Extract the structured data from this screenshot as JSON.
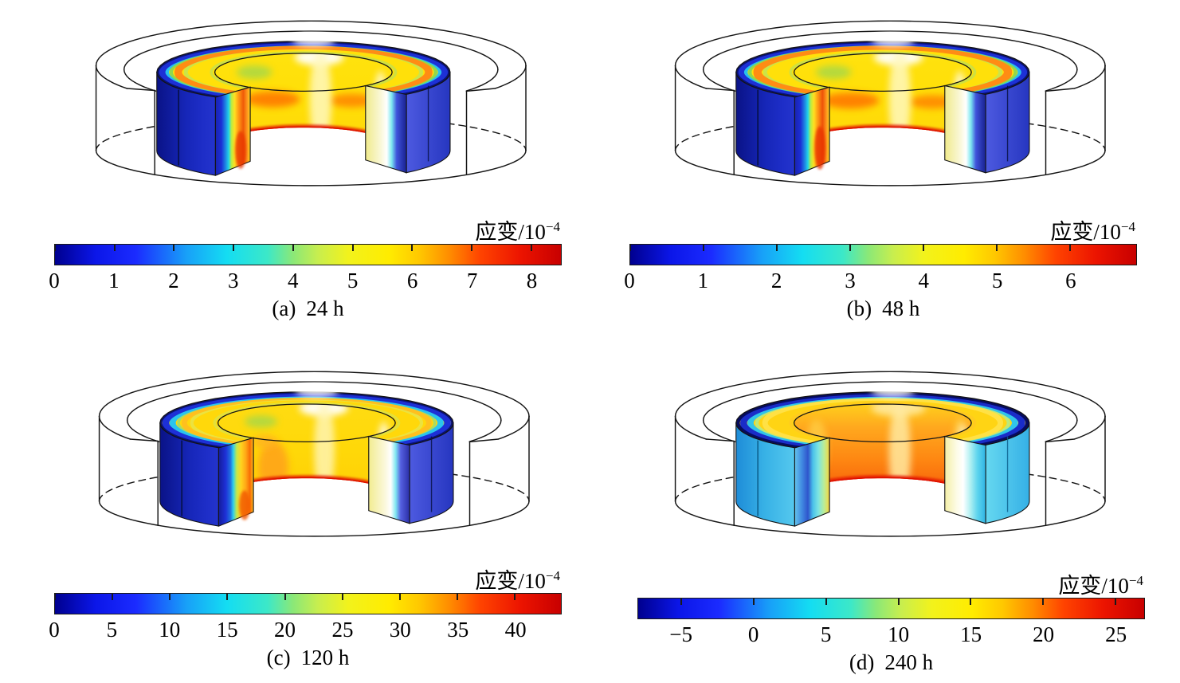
{
  "page": {
    "background": "#ffffff",
    "language": "zh-CN"
  },
  "colormap": {
    "name": "jet",
    "stops": [
      [
        0,
        "#00008f"
      ],
      [
        0.08,
        "#0b16e8"
      ],
      [
        0.16,
        "#1b2bff"
      ],
      [
        0.26,
        "#18a0f8"
      ],
      [
        0.34,
        "#14ddf2"
      ],
      [
        0.42,
        "#3ce8c8"
      ],
      [
        0.47,
        "#8ae878"
      ],
      [
        0.52,
        "#c8ee4e"
      ],
      [
        0.58,
        "#f2f21c"
      ],
      [
        0.66,
        "#ffec00"
      ],
      [
        0.72,
        "#ffc800"
      ],
      [
        0.78,
        "#ff8c00"
      ],
      [
        0.84,
        "#ff4400"
      ],
      [
        0.92,
        "#ec1400"
      ],
      [
        1,
        "#c80000"
      ]
    ]
  },
  "chart_data": [
    {
      "id": "a",
      "type": "heatmap",
      "geometry": "3D cut-away hollow cylinder, strain field on cut surfaces",
      "caption": {
        "index": "(a)",
        "time": "24 h"
      },
      "colorbar": {
        "label_prefix": "应变/10",
        "label_exponent": "−4",
        "min": 0,
        "max": 8.5,
        "ticks": [
          0,
          1,
          2,
          3,
          4,
          5,
          6,
          7,
          8
        ]
      },
      "figure": {
        "wall": [
          [
            0,
            "#ffe20e"
          ],
          [
            0.55,
            "#ffdf06"
          ],
          [
            0.85,
            "#ffd90a"
          ],
          [
            1,
            "#ffd400"
          ]
        ],
        "smudges": [
          [
            262,
            140,
            40,
            12,
            "#ff7a00",
            0.92
          ],
          [
            378,
            142,
            34,
            10,
            "#ff8200",
            0.85
          ],
          [
            235,
            100,
            26,
            10,
            "#a2d84c",
            0.8
          ],
          [
            330,
            78,
            36,
            12,
            "#ffffff",
            0.95
          ],
          [
            332,
            140,
            16,
            75,
            "#fff8c0",
            0.85
          ],
          [
            420,
            160,
            10,
            62,
            "#ffffff",
            0.75
          ]
        ],
        "rim": "#df1000",
        "ring_base": "#ffe00a",
        "ring_bands": [
          [
            0.06,
            "#c0e052",
            4,
            0.75
          ],
          [
            0.5,
            "#c8e44e",
            6,
            0.9
          ],
          [
            0.63,
            "#ff8c14",
            11,
            1
          ],
          [
            0.75,
            "#90d84c",
            5,
            1
          ],
          [
            0.83,
            "#28c0ee",
            7,
            1
          ],
          [
            0.91,
            "#1d30d6",
            10,
            1
          ],
          [
            0.99,
            "#0a1173",
            5,
            1
          ]
        ],
        "flank_left": [
          [
            0,
            "#0a1387"
          ],
          [
            0.5,
            "#1626b8"
          ],
          [
            0.8,
            "#1e2ec8"
          ],
          [
            1,
            "#2434cc"
          ]
        ],
        "flank_right": [
          [
            0,
            "#4d5ae0"
          ],
          [
            1,
            "#2636c0"
          ]
        ],
        "left_face": [
          [
            0,
            "#1a22b0"
          ],
          [
            0.17,
            "#1b2fd6"
          ],
          [
            0.3,
            "#1e8ee4"
          ],
          [
            0.38,
            "#22d4e8"
          ],
          [
            0.46,
            "#b8ec44"
          ],
          [
            0.55,
            "#ffe020"
          ],
          [
            0.66,
            "#ff9c14"
          ],
          [
            0.8,
            "#f05a08"
          ],
          [
            0.92,
            "#ff9c1e"
          ],
          [
            1,
            "#ffd41e"
          ]
        ],
        "right_face": [
          [
            0,
            "#f0ea8a"
          ],
          [
            0.38,
            "#faf8da"
          ],
          [
            0.52,
            "#ffffff"
          ],
          [
            0.64,
            "#7ce6f0"
          ],
          [
            0.76,
            "#4054dc"
          ],
          [
            0.92,
            "#2430a8"
          ],
          [
            1,
            "#1a2390"
          ]
        ],
        "face_blobs": [
          [
            215,
            215,
            8,
            28,
            "#e83400",
            0.8
          ]
        ],
        "seam": "#061040"
      }
    },
    {
      "id": "b",
      "type": "heatmap",
      "geometry": "3D cut-away hollow cylinder, strain field on cut surfaces",
      "caption": {
        "index": "(b)",
        "time": "48 h"
      },
      "colorbar": {
        "label_prefix": "应变/10",
        "label_exponent": "−4",
        "min": 0,
        "max": 6.9,
        "ticks": [
          0,
          1,
          2,
          3,
          4,
          5,
          6
        ]
      },
      "figure": {
        "wall": [
          [
            0,
            "#ffe20e"
          ],
          [
            0.55,
            "#ffde06"
          ],
          [
            0.85,
            "#ffd80a"
          ],
          [
            1,
            "#ffd200"
          ]
        ],
        "smudges": [
          [
            260,
            142,
            42,
            12,
            "#ff7a00",
            0.92
          ],
          [
            380,
            144,
            34,
            10,
            "#ff8200",
            0.85
          ],
          [
            235,
            100,
            26,
            10,
            "#a2d84c",
            0.8
          ],
          [
            330,
            78,
            36,
            12,
            "#ffffff",
            0.95
          ],
          [
            332,
            140,
            16,
            75,
            "#fff8c0",
            0.85
          ],
          [
            420,
            160,
            10,
            62,
            "#ffffff",
            0.78
          ]
        ],
        "rim": "#df1000",
        "ring_base": "#ffe00a",
        "ring_bands": [
          [
            0.06,
            "#c0e052",
            4,
            0.75
          ],
          [
            0.5,
            "#c8e44e",
            6,
            0.9
          ],
          [
            0.63,
            "#ff8c14",
            12,
            1
          ],
          [
            0.76,
            "#90d84c",
            5,
            1
          ],
          [
            0.84,
            "#28c0ee",
            7,
            1
          ],
          [
            0.92,
            "#1d30d6",
            10,
            1
          ],
          [
            0.99,
            "#0a1173",
            5,
            1
          ]
        ],
        "flank_left": [
          [
            0,
            "#0a1387"
          ],
          [
            0.5,
            "#1626b8"
          ],
          [
            0.8,
            "#1e2ec8"
          ],
          [
            1,
            "#2434cc"
          ]
        ],
        "flank_right": [
          [
            0,
            "#4d5ae0"
          ],
          [
            1,
            "#2636c0"
          ]
        ],
        "left_face": [
          [
            0,
            "#1a22b0"
          ],
          [
            0.17,
            "#1b2fd6"
          ],
          [
            0.3,
            "#1e8ee4"
          ],
          [
            0.38,
            "#22d4e8"
          ],
          [
            0.46,
            "#b8ec44"
          ],
          [
            0.55,
            "#ffe020"
          ],
          [
            0.66,
            "#ff9c14"
          ],
          [
            0.8,
            "#ee5208"
          ],
          [
            0.92,
            "#ff9c1e"
          ],
          [
            1,
            "#ffd41e"
          ]
        ],
        "right_face": [
          [
            0,
            "#f0ea8a"
          ],
          [
            0.38,
            "#faf8da"
          ],
          [
            0.52,
            "#ffffff"
          ],
          [
            0.64,
            "#7ce6f0"
          ],
          [
            0.76,
            "#4054dc"
          ],
          [
            0.92,
            "#2430a8"
          ],
          [
            1,
            "#1a2390"
          ]
        ],
        "face_blobs": [
          [
            215,
            212,
            8,
            32,
            "#e83000",
            0.82
          ]
        ],
        "seam": "#061040"
      }
    },
    {
      "id": "c",
      "type": "heatmap",
      "geometry": "3D cut-away hollow cylinder, strain field on cut surfaces",
      "caption": {
        "index": "(c)",
        "time": "120 h"
      },
      "colorbar": {
        "label_prefix": "应变/10",
        "label_exponent": "−4",
        "min": 0,
        "max": 44,
        "ticks": [
          0,
          5,
          10,
          15,
          20,
          25,
          30,
          35,
          40
        ]
      },
      "figure": {
        "wall": [
          [
            0,
            "#ffdc12"
          ],
          [
            0.5,
            "#ffd808"
          ],
          [
            1,
            "#ffcf06"
          ]
        ],
        "smudges": [
          [
            258,
            165,
            22,
            38,
            "#ff9e1e",
            0.8
          ],
          [
            246,
            128,
            18,
            10,
            "#ffb020",
            0.8
          ],
          [
            240,
            98,
            24,
            9,
            "#a2d84c",
            0.8
          ],
          [
            332,
            78,
            36,
            12,
            "#ffffff",
            0.95
          ],
          [
            333,
            140,
            15,
            75,
            "#fff6bc",
            0.8
          ],
          [
            420,
            160,
            10,
            62,
            "#ffffff",
            0.8
          ]
        ],
        "rim": "#df1000",
        "ring_base": "#ffd80a",
        "ring_bands": [
          [
            0.06,
            "#d8e44e",
            4,
            0.7
          ],
          [
            0.45,
            "#e8e44a",
            5,
            0.85
          ],
          [
            0.58,
            "#ffc01e",
            8,
            1
          ],
          [
            0.68,
            "#a8dc64",
            4,
            1
          ],
          [
            0.78,
            "#2ac4ee",
            9,
            1
          ],
          [
            0.9,
            "#1d30d6",
            10,
            1
          ],
          [
            0.99,
            "#0a1173",
            5,
            1
          ]
        ],
        "flank_left": [
          [
            0,
            "#0a1387"
          ],
          [
            0.5,
            "#1626b8"
          ],
          [
            0.8,
            "#1e2ec8"
          ],
          [
            1,
            "#2434cc"
          ]
        ],
        "flank_right": [
          [
            0,
            "#4d5ae0"
          ],
          [
            1,
            "#2636c0"
          ]
        ],
        "left_face": [
          [
            0,
            "#131c9a"
          ],
          [
            0.2,
            "#1e2fd6"
          ],
          [
            0.34,
            "#2070e0"
          ],
          [
            0.42,
            "#2ecfec"
          ],
          [
            0.52,
            "#c4e84a"
          ],
          [
            0.64,
            "#ffd41e"
          ],
          [
            0.78,
            "#ffa816"
          ],
          [
            0.9,
            "#f86c04"
          ],
          [
            1,
            "#ffc020"
          ]
        ],
        "right_face": [
          [
            0,
            "#f2ec90"
          ],
          [
            0.4,
            "#fbf8dc"
          ],
          [
            0.54,
            "#ffffff"
          ],
          [
            0.66,
            "#80e6f0"
          ],
          [
            0.78,
            "#5560e0"
          ],
          [
            1,
            "#2a2ea6"
          ]
        ],
        "face_blobs": [
          [
            216,
            222,
            8,
            22,
            "#f25600",
            0.8
          ]
        ],
        "seam": "#061040"
      }
    },
    {
      "id": "d",
      "type": "heatmap",
      "geometry": "3D cut-away hollow cylinder, strain field on cut surfaces",
      "caption": {
        "index": "(d)",
        "time": "240 h"
      },
      "colorbar": {
        "label_prefix": "应变/10",
        "label_exponent": "−4",
        "min": -8,
        "max": 27,
        "ticks": [
          -5,
          0,
          5,
          10,
          15,
          20,
          25
        ]
      },
      "figure": {
        "wall": [
          [
            0,
            "#ffcf1c"
          ],
          [
            0.25,
            "#ffa81e"
          ],
          [
            0.6,
            "#fe8712"
          ],
          [
            0.85,
            "#f86a0c"
          ],
          [
            1,
            "#f05608"
          ]
        ],
        "smudges": [
          [
            330,
            78,
            40,
            12,
            "#ffe9a0",
            0.9
          ],
          [
            332,
            145,
            16,
            78,
            "#ffe9a0",
            0.85
          ],
          [
            210,
            140,
            16,
            45,
            "#ffd34a",
            0.7
          ],
          [
            420,
            150,
            12,
            58,
            "#ffd34a",
            0.7
          ],
          [
            424,
            155,
            8,
            55,
            "#fff6d0",
            0.8
          ]
        ],
        "rim": "#e01000",
        "ring_base": "#ffd414",
        "ring_bands": [
          [
            0.06,
            "#ffc822",
            4,
            0.8
          ],
          [
            0.5,
            "#ffe24a",
            8,
            0.9
          ],
          [
            0.64,
            "#bce87a",
            5,
            1
          ],
          [
            0.75,
            "#30c4ea",
            9,
            1
          ],
          [
            0.87,
            "#1a2cc8",
            10,
            1
          ],
          [
            0.97,
            "#060b5e",
            6,
            1
          ]
        ],
        "flank_left": [
          [
            0,
            "#1e8cd8"
          ],
          [
            0.5,
            "#38b2e6"
          ],
          [
            1,
            "#55c8ee"
          ]
        ],
        "flank_right": [
          [
            0,
            "#66d8f0"
          ],
          [
            1,
            "#35b0e6"
          ]
        ],
        "left_face": [
          [
            0,
            "#64c4ec"
          ],
          [
            0.22,
            "#3f86e0"
          ],
          [
            0.38,
            "#2f55cc"
          ],
          [
            0.52,
            "#49c0ea"
          ],
          [
            0.68,
            "#7de4e2"
          ],
          [
            0.84,
            "#b8ec9a"
          ],
          [
            0.94,
            "#e0e060"
          ],
          [
            1,
            "#f0c83a"
          ]
        ],
        "right_face": [
          [
            0,
            "#f4efa6"
          ],
          [
            0.3,
            "#fdfce8"
          ],
          [
            0.45,
            "#ffffff"
          ],
          [
            0.62,
            "#b2f0f2"
          ],
          [
            0.8,
            "#5cd4ee"
          ],
          [
            1,
            "#2fb4e4"
          ]
        ],
        "face_blobs": [],
        "seam": "#0c5e8c"
      }
    }
  ]
}
